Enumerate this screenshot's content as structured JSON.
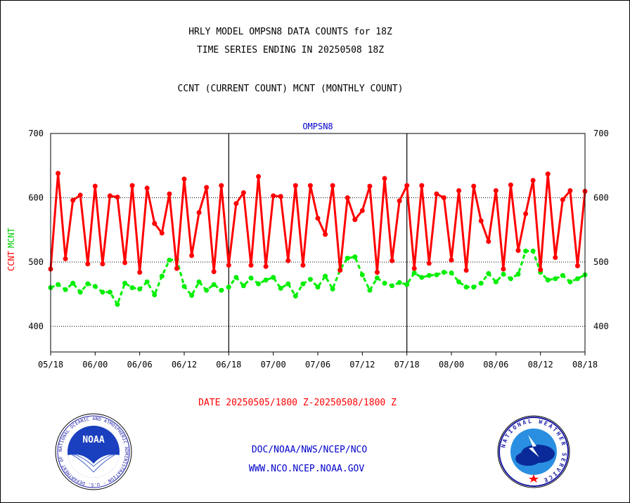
{
  "header": {
    "title": "HRLY MODEL OMPSN8 DATA COUNTS for 18Z",
    "subtitle": "TIME SERIES ENDING IN 20250508 18Z",
    "legend_text": "CCNT (CURRENT COUNT) MCNT (MONTHLY COUNT)"
  },
  "footer": {
    "date_range": "DATE 20250505/1800 Z-20250508/1800 Z",
    "agency": "DOC/NOAA/NWS/NCEP/NCO",
    "website": "WWW.NCO.NCEP.NOAA.GOV"
  },
  "logos": {
    "noaa_label": "NOAA",
    "noaa_ring_text": "NATIONAL OCEANIC AND ATMOSPHERIC ADMINISTRATION · U.S. DEPARTMENT OF COMMERCE",
    "nws_ring_text": "NATIONAL WEATHER SERVICE"
  },
  "colors": {
    "ccnt": "#ff0000",
    "mcnt": "#00ee00",
    "plot_label": "#0000cc",
    "date_text": "#ff0000",
    "footer_text": "#0000cc"
  },
  "chart_data": {
    "type": "line",
    "plot_label": "OMPSN8",
    "ylabel_ccnt": "CCNT",
    "ylabel_mcnt": "MCNT",
    "ylim": [
      360,
      700
    ],
    "yticks": [
      400,
      500,
      600,
      700
    ],
    "xlim": [
      0,
      72
    ],
    "x_tick_labels": [
      "05/18",
      "06/00",
      "06/06",
      "06/12",
      "06/18",
      "07/00",
      "07/06",
      "07/12",
      "07/18",
      "08/00",
      "08/06",
      "08/12",
      "08/18"
    ],
    "day_boundaries": [
      24,
      48
    ],
    "grid": true,
    "series": [
      {
        "name": "CCNT",
        "x": [
          0,
          1,
          2,
          3,
          4,
          5,
          6,
          7,
          8,
          9,
          10,
          11,
          12,
          13,
          14,
          15,
          16,
          17,
          18,
          19,
          20,
          21,
          22,
          23,
          24,
          25,
          26,
          27,
          28,
          29,
          30,
          31,
          32,
          33,
          34,
          35,
          36,
          37,
          38,
          39,
          40,
          41,
          42,
          43,
          44,
          45,
          46,
          47,
          48,
          49,
          50,
          51,
          52,
          53,
          54,
          55,
          56,
          57,
          58,
          59,
          60,
          61,
          62,
          63,
          64,
          65,
          66,
          67,
          68,
          69,
          70,
          71,
          72
        ],
        "values": [
          489,
          638,
          505,
          596,
          604,
          497,
          618,
          497,
          603,
          601,
          499,
          619,
          484,
          615,
          560,
          545,
          606,
          490,
          629,
          510,
          577,
          616,
          485,
          619,
          495,
          591,
          608,
          495,
          633,
          493,
          603,
          602,
          502,
          619,
          495,
          619,
          568,
          543,
          619,
          487,
          600,
          566,
          580,
          618,
          484,
          630,
          502,
          595,
          619,
          490,
          619,
          498,
          606,
          600,
          503,
          611,
          487,
          618,
          564,
          532,
          611,
          489,
          620,
          518,
          575,
          627,
          488,
          637,
          507,
          597,
          611,
          494,
          610
        ]
      },
      {
        "name": "MCNT",
        "x": [
          0,
          1,
          2,
          3,
          4,
          5,
          6,
          7,
          8,
          9,
          10,
          11,
          12,
          13,
          14,
          15,
          16,
          17,
          18,
          19,
          20,
          21,
          22,
          23,
          24,
          25,
          26,
          27,
          28,
          29,
          30,
          31,
          32,
          33,
          34,
          35,
          36,
          37,
          38,
          39,
          40,
          41,
          42,
          43,
          44,
          45,
          46,
          47,
          48,
          49,
          50,
          51,
          52,
          53,
          54,
          55,
          56,
          57,
          58,
          59,
          60,
          61,
          62,
          63,
          64,
          65,
          66,
          67,
          68,
          69,
          70,
          71,
          72
        ],
        "values": [
          460,
          465,
          457,
          467,
          453,
          466,
          462,
          453,
          453,
          434,
          467,
          460,
          458,
          469,
          449,
          478,
          503,
          504,
          462,
          448,
          469,
          456,
          465,
          456,
          461,
          476,
          463,
          475,
          466,
          472,
          476,
          459,
          466,
          447,
          466,
          473,
          461,
          478,
          458,
          488,
          506,
          508,
          480,
          456,
          475,
          467,
          463,
          468,
          465,
          483,
          476,
          479,
          480,
          484,
          483,
          469,
          461,
          461,
          467,
          482,
          469,
          481,
          474,
          481,
          517,
          517,
          484,
          472,
          474,
          479,
          469,
          474,
          480
        ]
      }
    ]
  }
}
